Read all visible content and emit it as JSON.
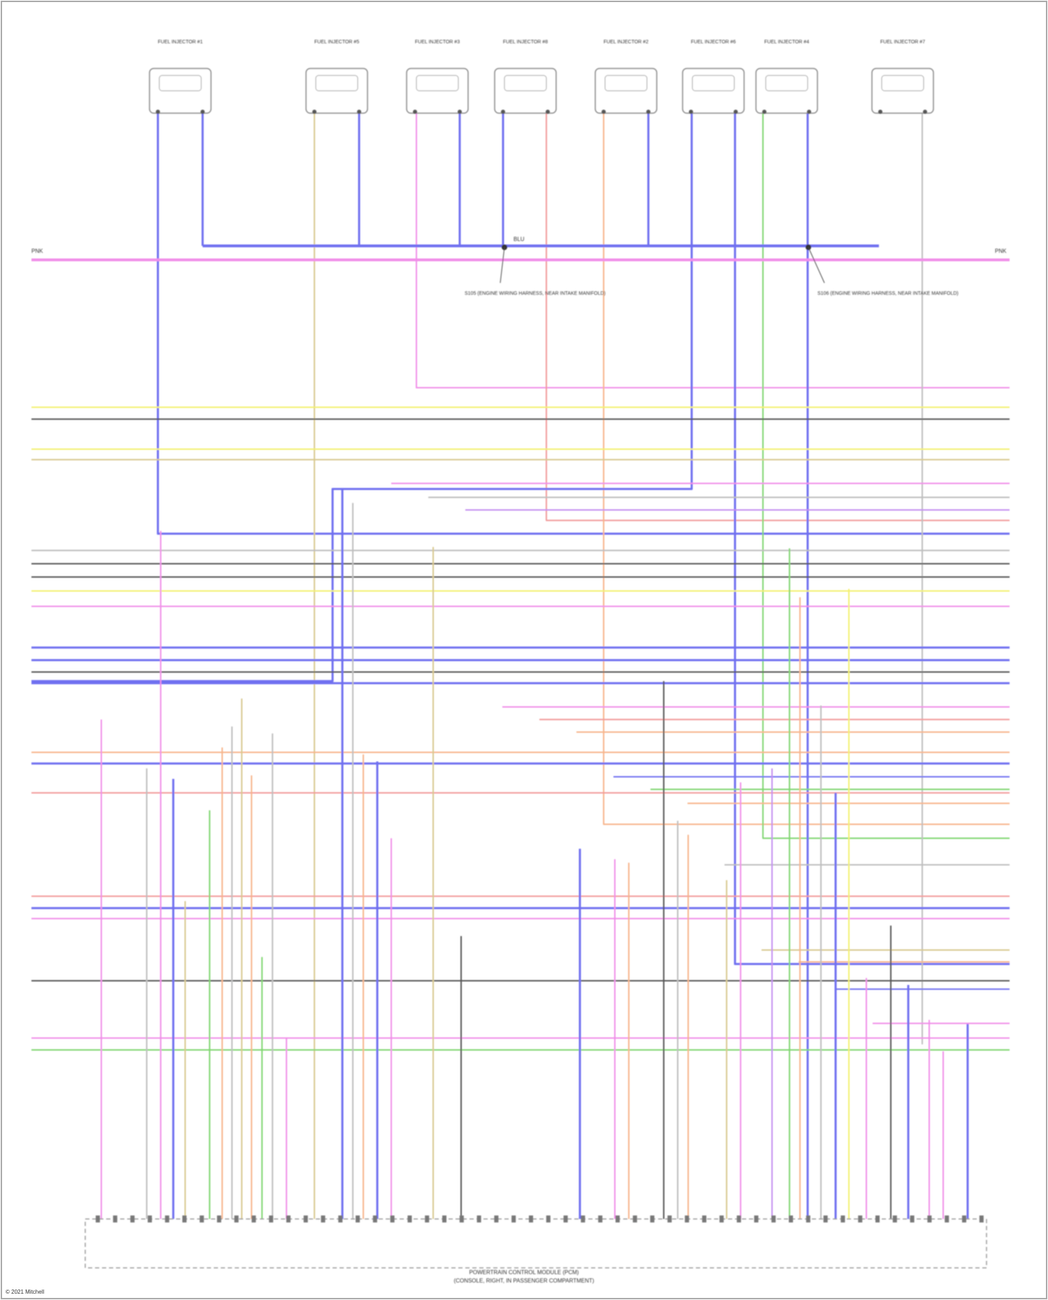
{
  "diagram": {
    "title_line1": "POWERTRAIN CONTROL MODULE (PCM)",
    "title_line2": "(CONSOLE, RIGHT, IN PASSENGER COMPARTMENT)",
    "footer": "© 2021 Mitchell"
  },
  "injectors": [
    {
      "label": "FUEL INJECTOR #1"
    },
    {
      "label": "FUEL INJECTOR #5"
    },
    {
      "label": "FUEL INJECTOR #3"
    },
    {
      "label": "FUEL INJECTOR #8"
    },
    {
      "label": "FUEL INJECTOR #2"
    },
    {
      "label": "FUEL INJECTOR #6"
    },
    {
      "label": "FUEL INJECTOR #4"
    },
    {
      "label": "FUEL INJECTOR #7"
    }
  ],
  "bus": {
    "label_left": "PNK",
    "label_right": "PNK",
    "splice_label": "BLU"
  },
  "splices": [
    {
      "text": "S105 (ENGINE WIRING HARNESS, NEAR INTAKE MANIFOLD)"
    },
    {
      "text": "S106 (ENGINE WIRING HARNESS, NEAR INTAKE MANIFOLD)"
    }
  ],
  "wire_colors": {
    "pink": "#f08ee8",
    "blue": "#6f6ff0",
    "yellow": "#f3f06e",
    "black": "#555555",
    "green": "#7fd66f",
    "orange": "#f7b48a",
    "red": "#f29a9a",
    "tan": "#d8c88e",
    "gray": "#bdbdbd",
    "violet": "#c38ef0"
  }
}
